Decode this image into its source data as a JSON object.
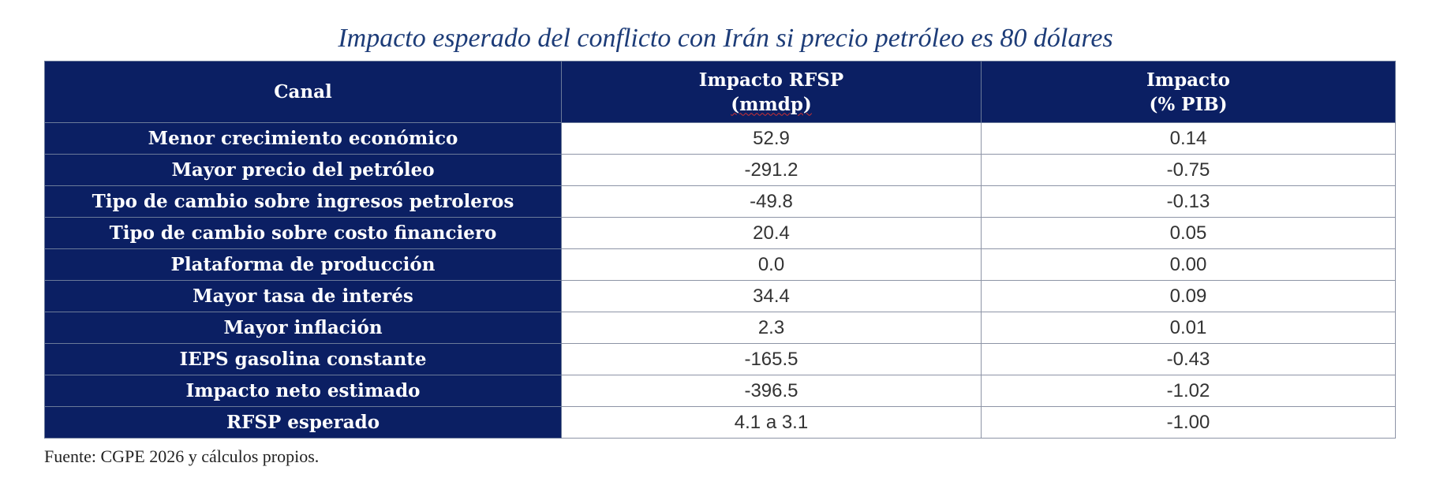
{
  "title": "Impacto esperado del conflicto con Irán si precio petróleo es 80 dólares",
  "table": {
    "headers": {
      "canal": "Canal",
      "rfsp_line1": "Impacto RFSP",
      "rfsp_line2": "(mmdp)",
      "pib_line1": "Impacto",
      "pib_line2": "(% PIB)"
    },
    "rows": [
      {
        "canal": "Menor crecimiento económico",
        "rfsp": "52.9",
        "pib": "0.14"
      },
      {
        "canal": "Mayor precio del petróleo",
        "rfsp": "-291.2",
        "pib": "-0.75"
      },
      {
        "canal": "Tipo de cambio sobre ingresos petroleros",
        "rfsp": "-49.8",
        "pib": "-0.13"
      },
      {
        "canal": "Tipo de cambio sobre costo financiero",
        "rfsp": "20.4",
        "pib": "0.05"
      },
      {
        "canal": "Plataforma de producción",
        "rfsp": "0.0",
        "pib": "0.00"
      },
      {
        "canal": "Mayor tasa de interés",
        "rfsp": "34.4",
        "pib": "0.09"
      },
      {
        "canal": "Mayor inflación",
        "rfsp": "2.3",
        "pib": "0.01"
      },
      {
        "canal": "IEPS gasolina constante",
        "rfsp": "-165.5",
        "pib": "-0.43"
      },
      {
        "canal": "Impacto neto estimado",
        "rfsp": "-396.5",
        "pib": "-1.02"
      },
      {
        "canal": "RFSP esperado",
        "rfsp": "4.1 a 3.1",
        "pib": "-1.00"
      }
    ]
  },
  "source": "Fuente: CGPE 2026 y cálculos propios.",
  "colors": {
    "header_bg": "#0b1f63",
    "title_text": "#1d3c78"
  }
}
